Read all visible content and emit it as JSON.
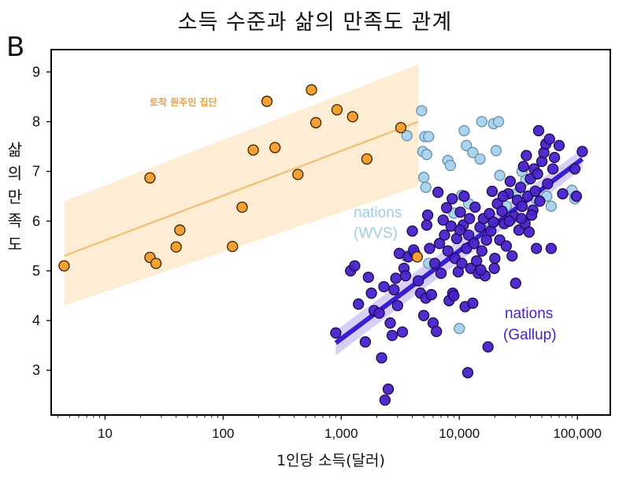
{
  "chart_data": {
    "type": "scatter",
    "title": "소득 수준과 삶의 만족도 관계",
    "panel_label": "B",
    "xlabel": "1인당 소득(달러)",
    "ylabel": "삶의 만족도",
    "x_scale": "log",
    "xlim": [
      3.5,
      190000
    ],
    "ylim": [
      2.1,
      9.45
    ],
    "x_ticks": [
      10,
      100,
      1000,
      10000,
      100000
    ],
    "x_tick_labels": [
      "10",
      "100",
      "1,000",
      "10,000",
      "100,000"
    ],
    "y_ticks": [
      3,
      4,
      5,
      6,
      7,
      8,
      9
    ],
    "y_tick_labels": [
      "3",
      "4",
      "5",
      "6",
      "7",
      "8",
      "9"
    ],
    "grid": false,
    "series": [
      {
        "name": "토착 원주민 집단",
        "color": "#f5a033",
        "fit": {
          "x": [
            4.5,
            4500
          ],
          "y": [
            5.3,
            8.0
          ],
          "band_lower": [
            4.3,
            6.7
          ],
          "band_upper": [
            6.4,
            9.15
          ]
        },
        "points": [
          [
            4.5,
            5.1
          ],
          [
            24,
            6.87
          ],
          [
            24,
            5.27
          ],
          [
            27,
            5.15
          ],
          [
            40,
            5.48
          ],
          [
            43,
            5.82
          ],
          [
            120,
            5.49
          ],
          [
            145,
            6.28
          ],
          [
            180,
            7.43
          ],
          [
            235,
            8.41
          ],
          [
            275,
            7.48
          ],
          [
            430,
            6.94
          ],
          [
            560,
            8.64
          ],
          [
            610,
            7.98
          ],
          [
            920,
            8.24
          ],
          [
            1250,
            8.1
          ],
          [
            1650,
            7.25
          ],
          [
            3200,
            7.88
          ],
          [
            4400,
            5.28
          ]
        ]
      },
      {
        "name": "nations (WVS)",
        "color": "#aad4ee",
        "points": [
          [
            3500,
            5.3
          ],
          [
            3600,
            7.72
          ],
          [
            4800,
            8.22
          ],
          [
            5100,
            7.7
          ],
          [
            5500,
            7.7
          ],
          [
            4900,
            7.4
          ],
          [
            5300,
            7.34
          ],
          [
            5000,
            6.88
          ],
          [
            5200,
            6.68
          ],
          [
            8000,
            7.22
          ],
          [
            8400,
            7.12
          ],
          [
            11000,
            7.82
          ],
          [
            11500,
            7.52
          ],
          [
            13000,
            7.38
          ],
          [
            15000,
            7.25
          ],
          [
            15500,
            8.0
          ],
          [
            19500,
            7.96
          ],
          [
            21500,
            8.0
          ],
          [
            20500,
            7.42
          ],
          [
            10500,
            6.52
          ],
          [
            12000,
            6.35
          ],
          [
            9000,
            6.16
          ],
          [
            17000,
            6.0
          ],
          [
            25000,
            6.3
          ],
          [
            28000,
            6.05
          ],
          [
            34000,
            7.0
          ],
          [
            36500,
            6.82
          ],
          [
            30000,
            6.55
          ],
          [
            45000,
            6.45
          ],
          [
            55000,
            6.5
          ],
          [
            60000,
            6.3
          ],
          [
            90000,
            6.62
          ],
          [
            95000,
            6.45
          ],
          [
            10000,
            3.84
          ],
          [
            5500,
            5.15
          ],
          [
            22000,
            6.92
          ]
        ]
      },
      {
        "name": "nations (Gallup)",
        "color": "#4a22c8",
        "fit": {
          "x": [
            900,
            110000
          ],
          "y": [
            3.55,
            7.25
          ],
          "band_lower": [
            3.3,
            7.05
          ],
          "band_upper": [
            3.8,
            7.45
          ]
        },
        "points": [
          [
            900,
            3.75
          ],
          [
            1200,
            5.0
          ],
          [
            1300,
            5.1
          ],
          [
            1400,
            4.33
          ],
          [
            1600,
            3.57
          ],
          [
            1700,
            4.87
          ],
          [
            1800,
            4.55
          ],
          [
            1900,
            4.2
          ],
          [
            2100,
            4.15
          ],
          [
            2200,
            3.25
          ],
          [
            2300,
            4.68
          ],
          [
            2350,
            2.4
          ],
          [
            2500,
            2.62
          ],
          [
            2600,
            3.95
          ],
          [
            2700,
            3.7
          ],
          [
            2800,
            4.62
          ],
          [
            2900,
            4.85
          ],
          [
            3000,
            4.3
          ],
          [
            3100,
            5.35
          ],
          [
            3300,
            3.77
          ],
          [
            3400,
            5.05
          ],
          [
            3500,
            4.9
          ],
          [
            3700,
            5.28
          ],
          [
            4000,
            5.8
          ],
          [
            4200,
            5.35
          ],
          [
            4500,
            4.8
          ],
          [
            4700,
            4.55
          ],
          [
            5000,
            4.1
          ],
          [
            5200,
            4.45
          ],
          [
            5300,
            5.92
          ],
          [
            5400,
            6.12
          ],
          [
            5600,
            5.45
          ],
          [
            5800,
            4.52
          ],
          [
            6000,
            3.95
          ],
          [
            6200,
            5.15
          ],
          [
            6400,
            3.78
          ],
          [
            6800,
            5.55
          ],
          [
            7000,
            4.95
          ],
          [
            7300,
            6.02
          ],
          [
            7500,
            5.72
          ],
          [
            7800,
            6.27
          ],
          [
            8000,
            5.4
          ],
          [
            8200,
            4.4
          ],
          [
            8500,
            5.9
          ],
          [
            8800,
            4.55
          ],
          [
            9000,
            4.5
          ],
          [
            9200,
            5.25
          ],
          [
            9500,
            5.65
          ],
          [
            9800,
            4.98
          ],
          [
            10200,
            6.18
          ],
          [
            10500,
            5.15
          ],
          [
            10800,
            5.92
          ],
          [
            11000,
            6.5
          ],
          [
            11200,
            4.28
          ],
          [
            11500,
            5.45
          ],
          [
            11800,
            2.95
          ],
          [
            12000,
            5.72
          ],
          [
            12500,
            5.05
          ],
          [
            13000,
            4.35
          ],
          [
            13300,
            5.55
          ],
          [
            13600,
            6.28
          ],
          [
            14000,
            5.2
          ],
          [
            14500,
            4.95
          ],
          [
            15000,
            5.88
          ],
          [
            15500,
            5.4
          ],
          [
            16000,
            6.05
          ],
          [
            16500,
            4.9
          ],
          [
            17000,
            5.62
          ],
          [
            17500,
            3.47
          ],
          [
            18000,
            6.15
          ],
          [
            18500,
            5.8
          ],
          [
            19000,
            6.6
          ],
          [
            19500,
            5.98
          ],
          [
            20000,
            5.25
          ],
          [
            21000,
            6.35
          ],
          [
            22000,
            5.62
          ],
          [
            23000,
            6.2
          ],
          [
            24000,
            5.95
          ],
          [
            25000,
            5.5
          ],
          [
            26000,
            6.55
          ],
          [
            27000,
            6.8
          ],
          [
            28000,
            5.3
          ],
          [
            29000,
            6.1
          ],
          [
            30000,
            4.75
          ],
          [
            31000,
            6.42
          ],
          [
            32000,
            5.82
          ],
          [
            33000,
            6.68
          ],
          [
            34000,
            6.3
          ],
          [
            35000,
            7.1
          ],
          [
            36000,
            5.95
          ],
          [
            37000,
            7.32
          ],
          [
            38000,
            6.5
          ],
          [
            39000,
            5.78
          ],
          [
            40000,
            6.85
          ],
          [
            42000,
            6.22
          ],
          [
            43000,
            7.05
          ],
          [
            44000,
            6.6
          ],
          [
            45000,
            5.45
          ],
          [
            46000,
            6.95
          ],
          [
            47000,
            7.82
          ],
          [
            48000,
            6.4
          ],
          [
            50000,
            7.2
          ],
          [
            52000,
            7.38
          ],
          [
            54000,
            7.55
          ],
          [
            56000,
            6.75
          ],
          [
            58000,
            7.65
          ],
          [
            60000,
            5.45
          ],
          [
            62000,
            7.05
          ],
          [
            64000,
            7.28
          ],
          [
            70000,
            7.52
          ],
          [
            75000,
            6.55
          ],
          [
            95000,
            7.05
          ],
          [
            98000,
            6.5
          ],
          [
            110000,
            7.4
          ],
          [
            41000,
            6.12
          ],
          [
            26500,
            6.0
          ],
          [
            19800,
            5.05
          ],
          [
            15200,
            5.02
          ],
          [
            12200,
            6.05
          ],
          [
            8700,
            6.45
          ],
          [
            6600,
            6.58
          ],
          [
            4100,
            5.42
          ],
          [
            10100,
            5.82
          ],
          [
            23500,
            6.5
          ],
          [
            33500,
            6.05
          ]
        ]
      }
    ],
    "annotations": [
      {
        "text": "토착 원주민 집단",
        "color": "#e8a040",
        "series": 0
      },
      {
        "text": "nations",
        "text2": "(WVS)",
        "color": "#9dcde6",
        "series": 1
      },
      {
        "text": "nations",
        "text2": "(Gallup)",
        "color": "#4a22c8",
        "series": 2
      }
    ]
  }
}
